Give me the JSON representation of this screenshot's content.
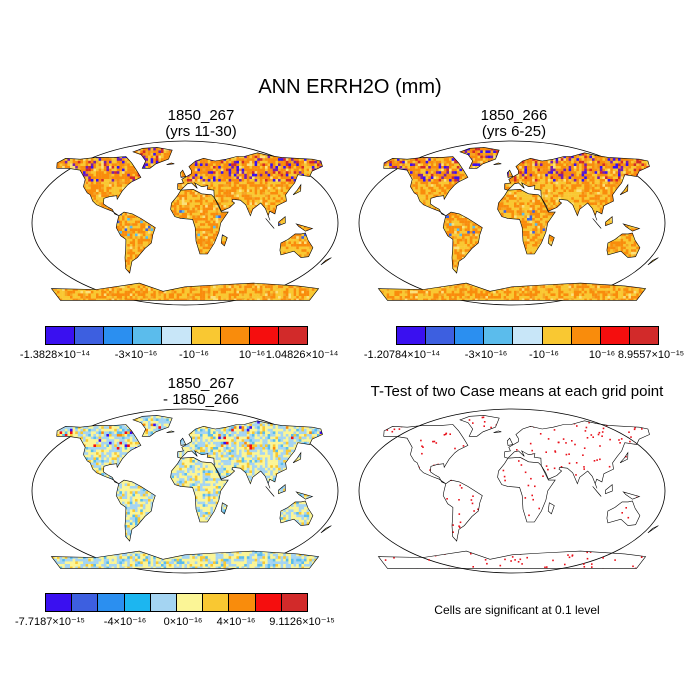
{
  "figure": {
    "title": "ANN ERRH2O (mm)"
  },
  "panels": [
    {
      "title_line1": "1850_267",
      "title_line2": "(yrs 11-30)",
      "colorbar": {
        "colors": [
          "#3a10f0",
          "#3d5fe0",
          "#2b8ff0",
          "#5bbcec",
          "#c8e6f8",
          "#f9c832",
          "#f98c0c",
          "#f50e0e",
          "#d22a2a"
        ],
        "labels": [
          "-1.3828×10⁻¹⁴",
          "-3×10⁻¹⁶",
          "-10⁻¹⁶",
          "10⁻¹⁶",
          "1.04826×10⁻¹⁴"
        ]
      }
    },
    {
      "title_line1": "1850_266",
      "title_line2": "(yrs 6-25)",
      "colorbar": {
        "colors": [
          "#3a10f0",
          "#3d5fe0",
          "#2b8ff0",
          "#5bbcec",
          "#c8e6f8",
          "#f9c832",
          "#f98c0c",
          "#f50e0e",
          "#d22a2a"
        ],
        "labels": [
          "-1.20784×10⁻¹⁴",
          "-3×10⁻¹⁶",
          "-10⁻¹⁶",
          "10⁻¹⁶",
          "8.9557×10⁻¹⁵"
        ]
      }
    },
    {
      "title_line1": "1850_267",
      "title_line2": "- 1850_266",
      "colorbar": {
        "colors": [
          "#3a10f0",
          "#3d5fe0",
          "#2b8ff0",
          "#1cb6f0",
          "#a4d4f2",
          "#fbf596",
          "#f9c832",
          "#f98c0c",
          "#f50e0e",
          "#d22a2a"
        ],
        "labels": [
          "-7.7187×10⁻¹⁵",
          "-4×10⁻¹⁶",
          "0×10⁻¹⁶",
          "4×10⁻¹⁶",
          "9.1126×10⁻¹⁵"
        ]
      }
    },
    {
      "title_line1": "T-Test of two Case means at each grid point",
      "note": "Cells are significant at 0.1 level"
    }
  ]
}
